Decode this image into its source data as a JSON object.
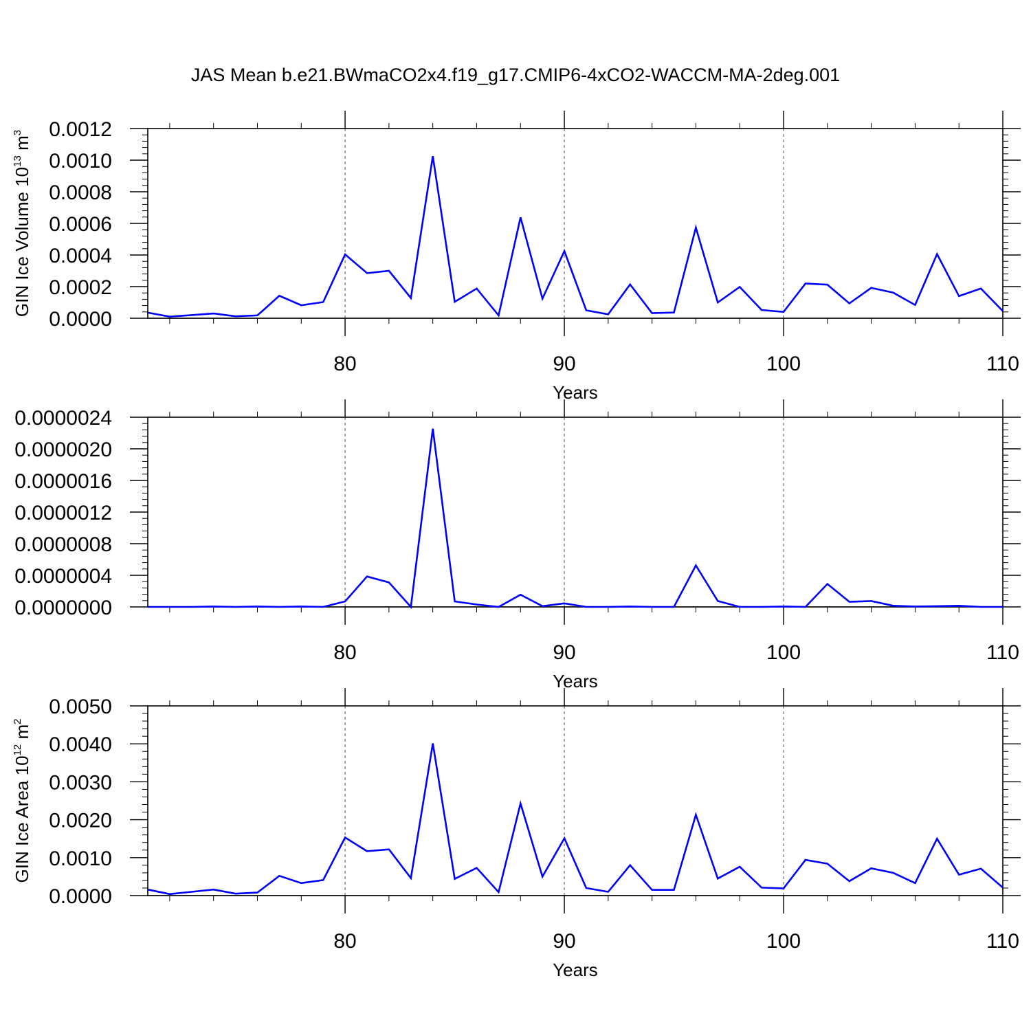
{
  "title": "JAS Mean b.e21.BWmaCO2x4.f19_g17.CMIP6-4xCO2-WACCM-MA-2deg.001",
  "line_color": "#0000ff",
  "chart_data": [
    {
      "type": "line",
      "ylabel": {
        "prefix": "GIN Ice Volume 10",
        "sup1": "13",
        "mid": " m",
        "sup2": "3"
      },
      "xlabel": "Years",
      "xlim": [
        71,
        110
      ],
      "ylim": [
        0,
        0.0012
      ],
      "xticks": [
        80,
        90,
        100,
        110
      ],
      "xtick_labels": [
        "80",
        "90",
        "100",
        "110"
      ],
      "yticks": [
        0,
        0.0002,
        0.0004,
        0.0006,
        0.0008,
        0.001,
        0.0012
      ],
      "ytick_labels": [
        "0.0000",
        "0.0002",
        "0.0004",
        "0.0006",
        "0.0008",
        "0.0010",
        "0.0012"
      ],
      "grid_x": [
        80,
        90,
        100
      ],
      "series": [
        {
          "x": [
            71,
            72,
            73,
            74,
            75,
            76,
            77,
            78,
            79,
            80,
            81,
            82,
            83,
            84,
            85,
            86,
            87,
            88,
            89,
            90,
            91,
            92,
            93,
            94,
            95,
            96,
            97,
            98,
            99,
            100,
            101,
            102,
            103,
            104,
            105,
            106,
            107,
            108,
            109,
            110
          ],
          "values": [
            3.5e-05,
            1e-05,
            2e-05,
            3e-05,
            1.2e-05,
            1.8e-05,
            0.000142,
            8.2e-05,
            0.000102,
            0.000404,
            0.000285,
            0.0003,
            0.000128,
            0.001025,
            0.000104,
            0.000188,
            1.8e-05,
            0.000638,
            0.000124,
            0.000425,
            5e-05,
            2.5e-05,
            0.000214,
            3.2e-05,
            3.6e-05,
            0.000573,
            0.0001,
            0.000198,
            5.2e-05,
            4e-05,
            0.00022,
            0.000212,
            9.4e-05,
            0.000192,
            0.000162,
            8.4e-05,
            0.000406,
            0.00014,
            0.000188,
            4.5e-05
          ]
        }
      ]
    },
    {
      "type": "line",
      "xlabel": "Years",
      "xlim": [
        71,
        110
      ],
      "ylim": [
        0,
        2.4e-06
      ],
      "xticks": [
        80,
        90,
        100,
        110
      ],
      "xtick_labels": [
        "80",
        "90",
        "100",
        "110"
      ],
      "yticks": [
        0,
        4e-07,
        8e-07,
        1.2e-06,
        1.6e-06,
        2e-06,
        2.4e-06
      ],
      "ytick_labels": [
        "0.0000000",
        "0.0000004",
        "0.0000008",
        "0.0000012",
        "0.0000016",
        "0.0000020",
        "0.0000024"
      ],
      "grid_x": [
        80,
        90,
        100
      ],
      "series": [
        {
          "x": [
            71,
            72,
            73,
            74,
            75,
            76,
            77,
            78,
            79,
            80,
            81,
            82,
            83,
            84,
            85,
            86,
            87,
            88,
            89,
            90,
            91,
            92,
            93,
            94,
            95,
            96,
            97,
            98,
            99,
            100,
            101,
            102,
            103,
            104,
            105,
            106,
            107,
            108,
            109,
            110
          ],
          "values": [
            0,
            0,
            0,
            5e-09,
            0,
            5e-09,
            0,
            5e-09,
            0,
            7e-08,
            3.85e-07,
            3.1e-07,
            0,
            2.255e-06,
            7e-08,
            3e-08,
            0,
            1.55e-07,
            1e-08,
            4.5e-08,
            0,
            0,
            5e-09,
            0,
            0,
            5.25e-07,
            7.5e-08,
            0,
            0,
            5e-09,
            0,
            2.9e-07,
            6.5e-08,
            7.5e-08,
            1.5e-08,
            5e-09,
            1e-08,
            1.5e-08,
            0,
            0
          ]
        }
      ]
    },
    {
      "type": "line",
      "ylabel": {
        "prefix": "GIN Ice Area 10",
        "sup1": "12",
        "mid": " m",
        "sup2": "2"
      },
      "xlabel": "Years",
      "xlim": [
        71,
        110
      ],
      "ylim": [
        0,
        0.005
      ],
      "xticks": [
        80,
        90,
        100,
        110
      ],
      "xtick_labels": [
        "80",
        "90",
        "100",
        "110"
      ],
      "yticks": [
        0,
        0.001,
        0.002,
        0.003,
        0.004,
        0.005
      ],
      "ytick_labels": [
        "0.0000",
        "0.0010",
        "0.0020",
        "0.0030",
        "0.0040",
        "0.0050"
      ],
      "grid_x": [
        80,
        90,
        100
      ],
      "series": [
        {
          "x": [
            71,
            72,
            73,
            74,
            75,
            76,
            77,
            78,
            79,
            80,
            81,
            82,
            83,
            84,
            85,
            86,
            87,
            88,
            89,
            90,
            91,
            92,
            93,
            94,
            95,
            96,
            97,
            98,
            99,
            100,
            101,
            102,
            103,
            104,
            105,
            106,
            107,
            108,
            109,
            110
          ],
          "values": [
            0.00016,
            4e-05,
            0.0001,
            0.00016,
            5e-05,
            8e-05,
            0.00052,
            0.00033,
            0.00041,
            0.00153,
            0.00117,
            0.00122,
            0.00046,
            0.00401,
            0.00044,
            0.00073,
            9e-05,
            0.00243,
            0.0005,
            0.00151,
            0.0002,
            0.0001,
            0.0008,
            0.00015,
            0.00015,
            0.00213,
            0.00045,
            0.00076,
            0.00021,
            0.00019,
            0.00094,
            0.00084,
            0.00038,
            0.00072,
            0.0006,
            0.00033,
            0.0015,
            0.00055,
            0.00071,
            0.00021
          ]
        }
      ]
    }
  ]
}
